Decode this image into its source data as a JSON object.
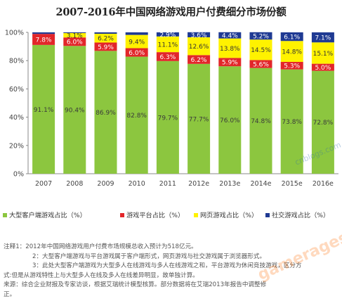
{
  "chart_data": {
    "type": "stacked-bar",
    "title": "2007-2016年中国网络游戏用户付费细分市场份额",
    "categories": [
      "2007",
      "2008",
      "2009",
      "2010",
      "2011",
      "2012e",
      "2013e",
      "2014e",
      "2015e",
      "2016e"
    ],
    "yticks": [
      "0%",
      "20%",
      "40%",
      "60%",
      "80%",
      "100%"
    ],
    "ylim": [
      0,
      100
    ],
    "series": [
      {
        "name": "大型客户端游戏占比（%）",
        "color": "#8cc63f",
        "values": [
          91.1,
          90.4,
          86.9,
          82.8,
          79.7,
          77.7,
          76.0,
          74.8,
          73.8,
          72.8
        ]
      },
      {
        "name": "游戏平台占比（%）",
        "color": "#e2262a",
        "values": [
          7.8,
          6.0,
          5.9,
          6.0,
          6.3,
          6.2,
          5.9,
          5.6,
          5.3,
          5.0
        ]
      },
      {
        "name": "网页游戏占比（%）",
        "color": "#fff200",
        "values": [
          0.0,
          3.1,
          6.2,
          9.4,
          11.1,
          12.6,
          13.8,
          14.5,
          14.8,
          15.1
        ]
      },
      {
        "name": "社交游戏占比（%）",
        "color": "#1f3a93",
        "values": [
          1.1,
          0.5,
          1.0,
          1.8,
          2.9,
          3.6,
          4.4,
          5.2,
          6.1,
          7.1
        ]
      }
    ],
    "labels": [
      [
        "91.1%",
        "90.4%",
        "86.9%",
        "82.8%",
        "79.7%",
        "77.7%",
        "76.0%",
        "74.8%",
        "73.8%",
        "72.8%"
      ],
      [
        "7.8%",
        "6.0%",
        "5.9%",
        "6.0%",
        "6.3%",
        "6.2%",
        "5.9%",
        "5.6%",
        "5.3%",
        "5.0%"
      ],
      [
        "",
        "3.1%",
        "6.2%",
        "9.4%",
        "11.1%",
        "12.6%",
        "13.8%",
        "14.5%",
        "14.8%",
        "15.1%"
      ],
      [
        "",
        "",
        "",
        "",
        "2.9%",
        "3.6%",
        "4.4%",
        "5.2%",
        "6.1%",
        "7.1%"
      ]
    ],
    "legend_position": "bottom",
    "grid": false
  },
  "notes": {
    "line1": "注释1：2012年中国网络游戏用户付费市场规模总收入预计为518亿元。",
    "line2": "2：大型客户端游戏与平台游戏属于客户端形式，网页游戏与社交游戏属于浏览器形式。",
    "line3": "3：此处大型客户端游戏为大型多人在线游戏与多人在线游戏之和，平台游戏为休闲竞技游戏，区分方",
    "line4": "式:但是从游戏特性上与大型多人在线及多人在线差异明显，故单独计算。",
    "line5": "来源：综合企业财报及专家访谈，根据艾瑞统计模型核算。部分数据将在艾瑞2013年报告中调整修",
    "line6": "正。"
  },
  "watermarks": {
    "site": "gamerages.com",
    "corner": "cnblogs.com"
  }
}
